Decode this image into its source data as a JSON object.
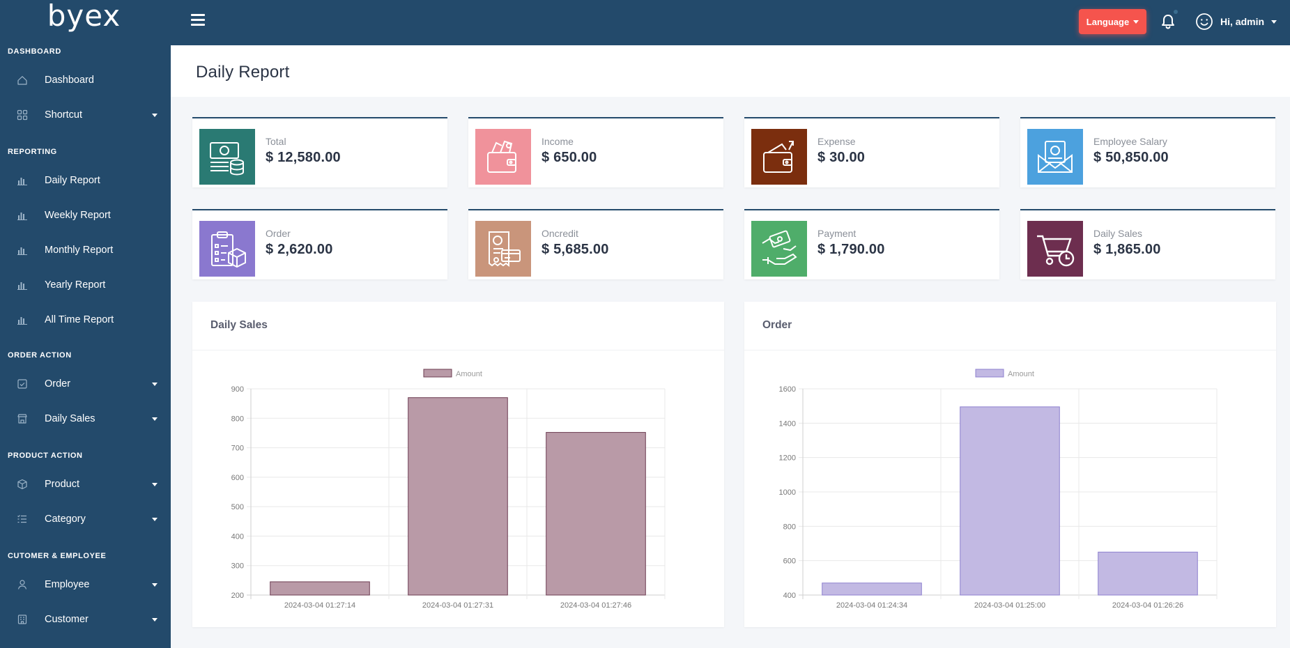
{
  "brand": {
    "name": "byex"
  },
  "topbar": {
    "language_label": "Language",
    "language_color": "#f5544d",
    "user_greeting": "Hi, admin"
  },
  "sidebar": {
    "sections": [
      {
        "title": "DASHBOARD",
        "items": [
          {
            "label": "Dashboard",
            "icon": "home-icon",
            "dropdown": false
          },
          {
            "label": "Shortcut",
            "icon": "grid-icon",
            "dropdown": true
          }
        ]
      },
      {
        "title": "REPORTING",
        "items": [
          {
            "label": "Daily Report",
            "icon": "bar-chart-icon",
            "dropdown": false
          },
          {
            "label": "Weekly Report",
            "icon": "bar-chart-icon",
            "dropdown": false
          },
          {
            "label": "Monthly Report",
            "icon": "bar-chart-icon",
            "dropdown": false
          },
          {
            "label": "Yearly Report",
            "icon": "bar-chart-icon",
            "dropdown": false
          },
          {
            "label": "All Time Report",
            "icon": "bar-chart-icon",
            "dropdown": false
          }
        ]
      },
      {
        "title": "ORDER ACTION",
        "items": [
          {
            "label": "Order",
            "icon": "checklist-icon",
            "dropdown": true
          },
          {
            "label": "Daily Sales",
            "icon": "store-icon",
            "dropdown": true
          }
        ]
      },
      {
        "title": "PRODUCT ACTION",
        "items": [
          {
            "label": "Product",
            "icon": "box-icon",
            "dropdown": true
          },
          {
            "label": "Category",
            "icon": "list-icon",
            "dropdown": true
          }
        ]
      },
      {
        "title": "CUTOMER & EMPLOYEE",
        "items": [
          {
            "label": "Employee",
            "icon": "user-icon",
            "dropdown": true
          },
          {
            "label": "Customer",
            "icon": "building-icon",
            "dropdown": true
          }
        ]
      }
    ]
  },
  "page": {
    "title": "Daily Report"
  },
  "stats": [
    {
      "label": "Total",
      "value": "$ 12,580.00",
      "color": "#2a7a73",
      "icon": "cash-coins-icon"
    },
    {
      "label": "Income",
      "value": "$ 650.00",
      "color": "#f0929b",
      "icon": "wallet-money-icon"
    },
    {
      "label": "Expense",
      "value": "$ 30.00",
      "color": "#7b2e0e",
      "icon": "wallet-arrow-icon"
    },
    {
      "label": "Employee Salary",
      "value": "$ 50,850.00",
      "color": "#4ca1de",
      "icon": "salary-envelope-icon"
    },
    {
      "label": "Order",
      "value": "$ 2,620.00",
      "color": "#8a78cf",
      "icon": "order-clipboard-icon"
    },
    {
      "label": "Oncredit",
      "value": "$ 5,685.00",
      "color": "#c9957b",
      "icon": "credit-invoice-icon"
    },
    {
      "label": "Payment",
      "value": "$ 1,790.00",
      "color": "#4fad6a",
      "icon": "payment-hand-icon"
    },
    {
      "label": "Daily Sales",
      "value": "$ 1,865.00",
      "color": "#6d2e4f",
      "icon": "cart-clock-icon"
    }
  ],
  "panels": [
    {
      "title": "Daily Sales"
    },
    {
      "title": "Order"
    }
  ],
  "chart_data": [
    {
      "type": "bar",
      "legend": "Amount",
      "categories": [
        "2024-03-04 01:27:14",
        "2024-03-04 01:27:31",
        "2024-03-04 01:27:46"
      ],
      "series": [
        {
          "name": "Amount",
          "values": [
            245,
            870,
            752
          ]
        }
      ],
      "ylim": [
        200,
        900
      ],
      "yticks": [
        200,
        300,
        400,
        500,
        600,
        700,
        800,
        900
      ],
      "fill": "#b99aa7",
      "stroke": "#6d3c52",
      "grid": true,
      "legend_position": "top"
    },
    {
      "type": "bar",
      "legend": "Amount",
      "categories": [
        "2024-03-04 01:24:34",
        "2024-03-04 01:25:00",
        "2024-03-04 01:26:26"
      ],
      "series": [
        {
          "name": "Amount",
          "values": [
            470,
            1495,
            650
          ]
        }
      ],
      "ylim": [
        400,
        1600
      ],
      "yticks": [
        400,
        600,
        800,
        1000,
        1200,
        1400,
        1600
      ],
      "fill": "#c2b9e3",
      "stroke": "#8e80cf",
      "grid": true,
      "legend_position": "top"
    }
  ]
}
